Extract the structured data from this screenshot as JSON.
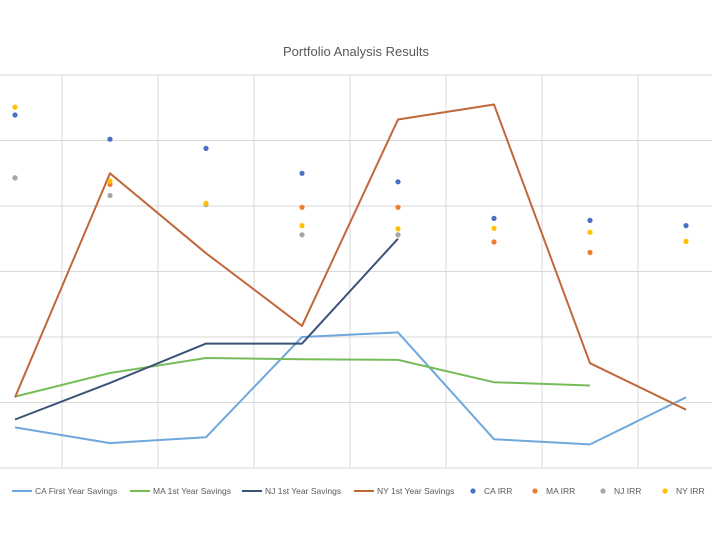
{
  "chart_data": {
    "type": "line",
    "title": "Portfolio Analysis Results",
    "xlabel": "",
    "ylabel": "",
    "ylim": [
      0,
      6
    ],
    "grid": true,
    "legend_position": "bottom",
    "x": [
      1,
      2,
      3,
      4,
      5,
      6,
      7,
      8
    ],
    "series": [
      {
        "name": "CA First Year Savings",
        "kind": "line",
        "color": "#6fa8dc",
        "values": [
          0.62,
          0.38,
          0.47,
          2.0,
          2.07,
          0.44,
          0.36,
          1.08
        ]
      },
      {
        "name": "MA 1st Year Savings",
        "kind": "line",
        "color": "#77bc5a",
        "values": [
          1.09,
          1.45,
          1.68,
          1.66,
          1.65,
          1.31,
          1.26,
          null
        ]
      },
      {
        "name": "NJ 1st Year Savings",
        "kind": "line",
        "color": "#3b5278",
        "values": [
          0.74,
          1.3,
          1.9,
          1.9,
          3.5,
          null,
          null,
          null
        ]
      },
      {
        "name": "NY 1st Year Savings",
        "kind": "line",
        "color": "#c0683a",
        "values": [
          1.08,
          4.5,
          3.28,
          2.17,
          5.32,
          5.55,
          1.6,
          0.89
        ]
      },
      {
        "name": "CA IRR",
        "kind": "marker",
        "color": "#4472c4",
        "values": [
          5.39,
          5.02,
          4.88,
          4.5,
          4.37,
          3.81,
          3.78,
          3.7
        ]
      },
      {
        "name": "MA IRR",
        "kind": "marker",
        "color": "#ed7d31",
        "values": [
          4.43,
          4.33,
          4.03,
          3.98,
          3.98,
          3.45,
          3.29,
          null
        ]
      },
      {
        "name": "NJ IRR",
        "kind": "marker",
        "color": "#a5a5a5",
        "values": [
          4.43,
          4.16,
          4.02,
          3.56,
          3.56,
          null,
          null,
          null
        ]
      },
      {
        "name": "NY IRR",
        "kind": "marker",
        "color": "#ffc000",
        "values": [
          5.51,
          4.38,
          4.04,
          3.7,
          3.65,
          3.66,
          3.6,
          3.46
        ]
      }
    ]
  }
}
